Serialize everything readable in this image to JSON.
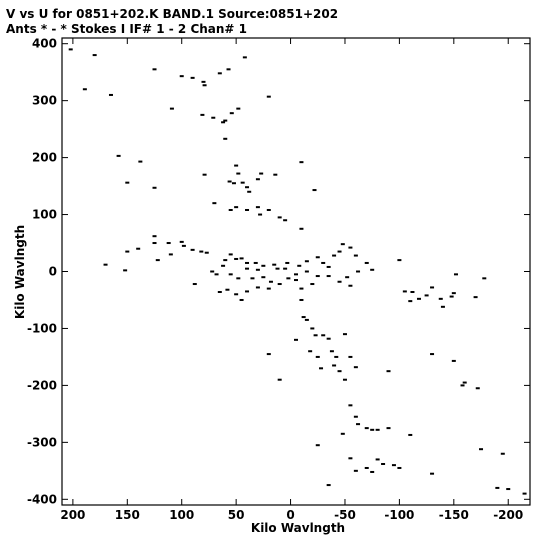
{
  "header": {
    "title_line": "V vs U for 0851+202.K BAND.1   Source:0851+202",
    "subtitle_line": "Ants * - *     Stokes I  IF# 1 - 2  Chan# 1"
  },
  "chart_data": {
    "type": "scatter",
    "title": "V vs U for 0851+202.K BAND.1   Source:0851+202",
    "subtitle": "Ants * - *     Stokes I  IF# 1 - 2  Chan# 1",
    "xlabel": "Kilo Wavlngth",
    "ylabel": "Kilo Wavlngth",
    "xlim": [
      210,
      -220
    ],
    "ylim": [
      -410,
      410
    ],
    "x_reversed": true,
    "xticks": [
      200,
      150,
      100,
      50,
      0,
      -50,
      -100,
      -150,
      -200
    ],
    "xtick_labels": [
      "200",
      "150",
      "100",
      "50",
      "0",
      "-50",
      "-100",
      "-150",
      "-200"
    ],
    "yticks": [
      -400,
      -300,
      -200,
      -100,
      0,
      100,
      200,
      300,
      400
    ],
    "ytick_labels": [
      "-400",
      "-300",
      "-200",
      "-100",
      "0",
      "100",
      "200",
      "300",
      "400"
    ],
    "grid": false,
    "legend": "none",
    "series": [
      {
        "points": [
          [
            202,
            390
          ],
          [
            180,
            380
          ],
          [
            189,
            320
          ],
          [
            165,
            310
          ],
          [
            125,
            355
          ],
          [
            109,
            286
          ],
          [
            100,
            343
          ],
          [
            90,
            340
          ],
          [
            80,
            333
          ],
          [
            79,
            327
          ],
          [
            65,
            348
          ],
          [
            57,
            355
          ],
          [
            42,
            376
          ],
          [
            20,
            307
          ],
          [
            48,
            286
          ],
          [
            54,
            278
          ],
          [
            62,
            262
          ],
          [
            71,
            270
          ],
          [
            81,
            275
          ],
          [
            60,
            265
          ],
          [
            60,
            233
          ],
          [
            158,
            203
          ],
          [
            138,
            193
          ],
          [
            150,
            156
          ],
          [
            125,
            147
          ],
          [
            79,
            170
          ],
          [
            50,
            186
          ],
          [
            48,
            172
          ],
          [
            52,
            155
          ],
          [
            56,
            158
          ],
          [
            44,
            156
          ],
          [
            40,
            148
          ],
          [
            38,
            140
          ],
          [
            30,
            162
          ],
          [
            27,
            172
          ],
          [
            14,
            170
          ],
          [
            -10,
            192
          ],
          [
            -22,
            143
          ],
          [
            70,
            120
          ],
          [
            55,
            108
          ],
          [
            50,
            113
          ],
          [
            40,
            108
          ],
          [
            30,
            113
          ],
          [
            28,
            100
          ],
          [
            10,
            95
          ],
          [
            5,
            90
          ],
          [
            20,
            108
          ],
          [
            -10,
            75
          ],
          [
            170,
            12
          ],
          [
            150,
            35
          ],
          [
            152,
            2
          ],
          [
            140,
            40
          ],
          [
            125,
            50
          ],
          [
            125,
            62
          ],
          [
            112,
            50
          ],
          [
            100,
            52
          ],
          [
            98,
            45
          ],
          [
            90,
            38
          ],
          [
            82,
            35
          ],
          [
            77,
            33
          ],
          [
            110,
            30
          ],
          [
            122,
            20
          ],
          [
            88,
            -22
          ],
          [
            72,
            0
          ],
          [
            68,
            -5
          ],
          [
            60,
            20
          ],
          [
            55,
            30
          ],
          [
            50,
            22
          ],
          [
            45,
            23
          ],
          [
            40,
            15
          ],
          [
            32,
            15
          ],
          [
            25,
            10
          ],
          [
            15,
            12
          ],
          [
            5,
            5
          ],
          [
            3,
            15
          ],
          [
            -8,
            10
          ],
          [
            -15,
            18
          ],
          [
            -25,
            25
          ],
          [
            -30,
            15
          ],
          [
            -35,
            8
          ],
          [
            -40,
            28
          ],
          [
            -45,
            35
          ],
          [
            -48,
            48
          ],
          [
            -55,
            42
          ],
          [
            -60,
            28
          ],
          [
            -70,
            15
          ],
          [
            -75,
            3
          ],
          [
            -62,
            0
          ],
          [
            -52,
            -10
          ],
          [
            -55,
            -25
          ],
          [
            -45,
            -18
          ],
          [
            -35,
            -8
          ],
          [
            -25,
            -8
          ],
          [
            -15,
            0
          ],
          [
            -5,
            -5
          ],
          [
            2,
            -12
          ],
          [
            10,
            -22
          ],
          [
            20,
            -30
          ],
          [
            30,
            -28
          ],
          [
            40,
            -35
          ],
          [
            50,
            -40
          ],
          [
            58,
            -32
          ],
          [
            65,
            -36
          ],
          [
            45,
            -50
          ],
          [
            35,
            -12
          ],
          [
            25,
            -10
          ],
          [
            18,
            -18
          ],
          [
            55,
            -5
          ],
          [
            48,
            -12
          ],
          [
            62,
            10
          ],
          [
            12,
            5
          ],
          [
            30,
            3
          ],
          [
            40,
            5
          ],
          [
            -10,
            -30
          ],
          [
            -20,
            -22
          ],
          [
            -5,
            -15
          ],
          [
            -100,
            20
          ],
          [
            -105,
            -35
          ],
          [
            -112,
            -36
          ],
          [
            -118,
            -48
          ],
          [
            -125,
            -42
          ],
          [
            -130,
            -28
          ],
          [
            -138,
            -48
          ],
          [
            -140,
            -62
          ],
          [
            -148,
            -44
          ],
          [
            -150,
            -38
          ],
          [
            -152,
            -5
          ],
          [
            -170,
            -45
          ],
          [
            -178,
            -12
          ],
          [
            -110,
            -52
          ],
          [
            -10,
            -50
          ],
          [
            -12,
            -80
          ],
          [
            -15,
            -85
          ],
          [
            -20,
            -100
          ],
          [
            -23,
            -112
          ],
          [
            -30,
            -112
          ],
          [
            -35,
            -118
          ],
          [
            -38,
            -140
          ],
          [
            -42,
            -150
          ],
          [
            -50,
            -110
          ],
          [
            -55,
            -150
          ],
          [
            -60,
            -168
          ],
          [
            -40,
            -165
          ],
          [
            -25,
            -150
          ],
          [
            -18,
            -140
          ],
          [
            -28,
            -170
          ],
          [
            -45,
            -175
          ],
          [
            -50,
            -190
          ],
          [
            -5,
            -120
          ],
          [
            10,
            -190
          ],
          [
            20,
            -145
          ],
          [
            -90,
            -175
          ],
          [
            -130,
            -145
          ],
          [
            -150,
            -157
          ],
          [
            -160,
            -195
          ],
          [
            -158,
            -200
          ],
          [
            -172,
            -205
          ],
          [
            -55,
            -235
          ],
          [
            -60,
            -255
          ],
          [
            -62,
            -268
          ],
          [
            -70,
            -275
          ],
          [
            -75,
            -278
          ],
          [
            -90,
            -275
          ],
          [
            -80,
            -278
          ],
          [
            -110,
            -287
          ],
          [
            -48,
            -285
          ],
          [
            -25,
            -305
          ],
          [
            -55,
            -328
          ],
          [
            -60,
            -350
          ],
          [
            -70,
            -345
          ],
          [
            -75,
            -352
          ],
          [
            -80,
            -330
          ],
          [
            -85,
            -338
          ],
          [
            -95,
            -340
          ],
          [
            -100,
            -345
          ],
          [
            -130,
            -355
          ],
          [
            -175,
            -312
          ],
          [
            -195,
            -320
          ],
          [
            -35,
            -375
          ],
          [
            -190,
            -380
          ],
          [
            -200,
            -382
          ],
          [
            -215,
            -390
          ]
        ]
      }
    ]
  }
}
